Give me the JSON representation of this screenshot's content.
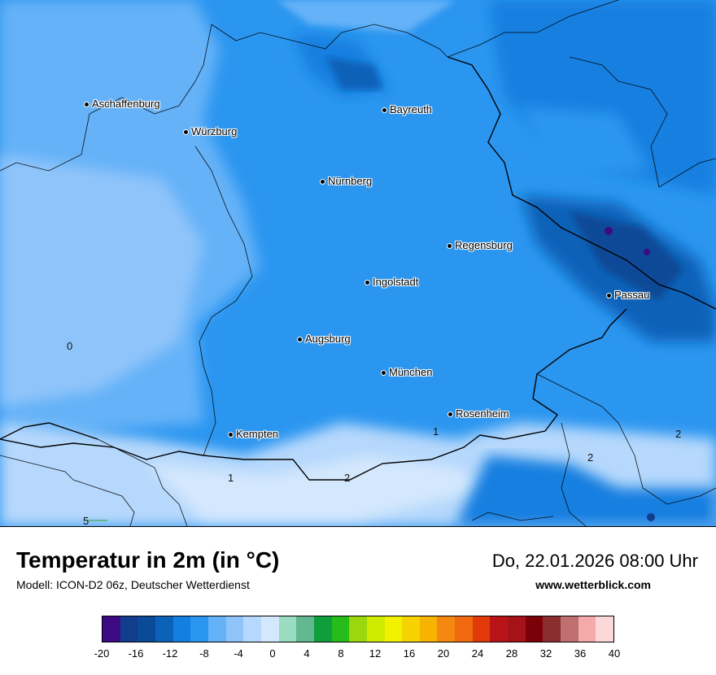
{
  "map": {
    "cities": [
      {
        "name": "Aschaffenburg"
      },
      {
        "name": "Würzburg"
      },
      {
        "name": "Bayreuth"
      },
      {
        "name": "Nürnberg"
      },
      {
        "name": "Regensburg"
      },
      {
        "name": "Ingolstadt"
      },
      {
        "name": "Passau"
      },
      {
        "name": "Augsburg"
      },
      {
        "name": "München"
      },
      {
        "name": "Rosenheim"
      },
      {
        "name": "Kempten"
      }
    ],
    "isolines": [
      {
        "label": "0"
      },
      {
        "label": "1"
      },
      {
        "label": "1"
      },
      {
        "label": "2"
      },
      {
        "label": "2"
      },
      {
        "label": "2"
      },
      {
        "label": "5"
      }
    ]
  },
  "footer": {
    "title": "Temperatur in 2m (in °C)",
    "model": "Modell: ICON-D2 06z, Deutscher Wetterdienst",
    "datetime": "Do, 22.01.2026 08:00 Uhr",
    "website": "www.wetterblick.com"
  },
  "legend": {
    "colors": [
      "#3c0a82",
      "#123d8c",
      "#0a4a96",
      "#0c62b8",
      "#137fe0",
      "#2b96f0",
      "#65b2f8",
      "#8fc4fa",
      "#b6d8fc",
      "#d4e8fd",
      "#9adcc0",
      "#62b890",
      "#0f9e3c",
      "#26bc1a",
      "#9ad70c",
      "#cfec00",
      "#f2f200",
      "#f5d200",
      "#f6b400",
      "#f48810",
      "#f26a10",
      "#e23a08",
      "#b81418",
      "#a51218",
      "#7c0008",
      "#8a2e30",
      "#c07070",
      "#f4aaaa",
      "#fcd8d8"
    ],
    "ticks": [
      "-20",
      "-16",
      "-12",
      "-8",
      "-4",
      "0",
      "4",
      "8",
      "12",
      "16",
      "20",
      "24",
      "28",
      "32",
      "36",
      "40"
    ]
  }
}
